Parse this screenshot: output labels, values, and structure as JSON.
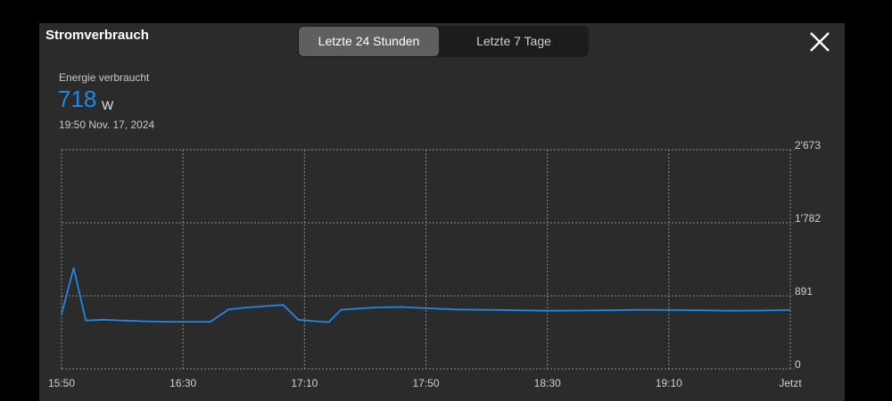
{
  "header": {
    "title": "Stromverbrauch",
    "tabs": [
      "Letzte 24 Stunden",
      "Letzte 7 Tage"
    ],
    "active_tab": "Letzte 24 Stunden",
    "close_icon": "close-icon"
  },
  "metric": {
    "label": "Energie verbraucht",
    "value": "718",
    "unit": "W",
    "timestamp": "19:50  Nov. 17, 2024"
  },
  "colors": {
    "line": "#1e88e5",
    "panel": "#2b2b2b",
    "grid": "#8a8a8a"
  },
  "chart_data": {
    "type": "line",
    "x_tick_labels": [
      "15:50",
      "16:30",
      "17:10",
      "17:50",
      "18:30",
      "19:10",
      "Jetzt"
    ],
    "y_tick_labels": [
      "0",
      "891",
      "1'782",
      "2'673"
    ],
    "ylim": [
      0,
      2673
    ],
    "x_minutes_range": [
      0,
      240
    ],
    "grid": true,
    "series": [
      {
        "x": [
          0,
          4,
          8,
          14,
          20,
          28,
          35,
          42,
          49,
          55,
          61,
          69,
          73,
          78,
          84,
          88,
          92,
          99,
          104,
          112,
          120,
          130,
          140,
          150,
          160,
          170,
          180,
          190,
          200,
          210,
          220,
          230,
          240
        ],
        "y": [
          670,
          1230,
          590,
          600,
          590,
          580,
          575,
          575,
          575,
          725,
          750,
          770,
          780,
          600,
          580,
          570,
          720,
          740,
          750,
          755,
          740,
          725,
          720,
          715,
          710,
          712,
          715,
          720,
          718,
          715,
          710,
          712,
          718
        ]
      }
    ]
  }
}
